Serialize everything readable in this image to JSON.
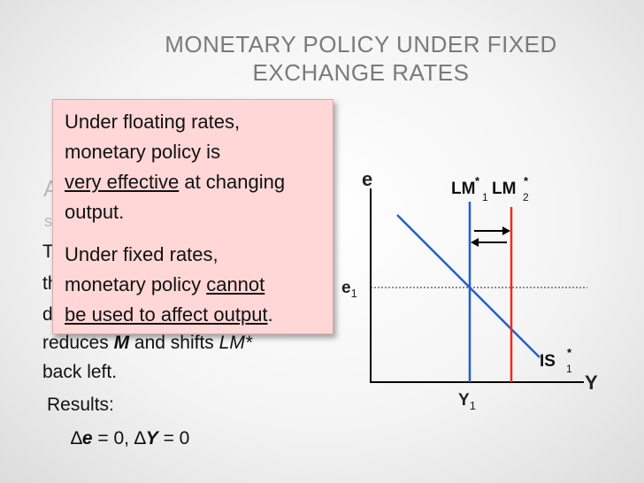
{
  "slide": {
    "title_line1": "MONETARY POLICY UNDER FIXED",
    "title_line2": "EXCHANGE RATES"
  },
  "background_text": {
    "ghost_a": "A",
    "ghost_s": "s",
    "line_t": "T",
    "line_th": "th",
    "line_d": "d",
    "line_reduces": "reduces",
    "line_reduces_m": "M",
    "line_reduces_rest": "and shifts",
    "line_reduces_lm": "LM*",
    "line_back_left": "back left.",
    "results_label": "Results:",
    "result_de_sym": "∆",
    "result_de_var": "e",
    "result_de_val": "= 0,",
    "result_dy_sym": "∆",
    "result_dy_var": "Y",
    "result_dy_val": "= 0"
  },
  "callout": {
    "p1_line1": "Under floating rates,",
    "p1_line2": "monetary policy is",
    "p1_line3_u": "very effective",
    "p1_line3_rest": "at changing",
    "p1_line4": "output.",
    "p2_line1": "Under fixed rates,",
    "p2_line2_pre": "monetary policy",
    "p2_line2_u": "cannot",
    "p2_line3_u": "be used to affect output",
    "p2_line3_end": ".",
    "background_color": "#ffd7d7"
  },
  "diagram": {
    "y_axis_label": "e",
    "x_axis_label": "Y",
    "e1_main": "e",
    "e1_sub": "1",
    "y1_main": "Y",
    "y1_sub": "1",
    "lm1_main": "LM",
    "lm1_sup": "*",
    "lm1_sub": "1",
    "lm2_main": "LM",
    "lm2_sup": "*",
    "lm2_sub": "2",
    "is_main": "IS",
    "is_sup": "*",
    "is_sub": "1",
    "colors": {
      "lm1": "#1f5fd1",
      "lm2": "#f02b18",
      "is": "#1f5fd1",
      "axes": "#000000"
    }
  }
}
